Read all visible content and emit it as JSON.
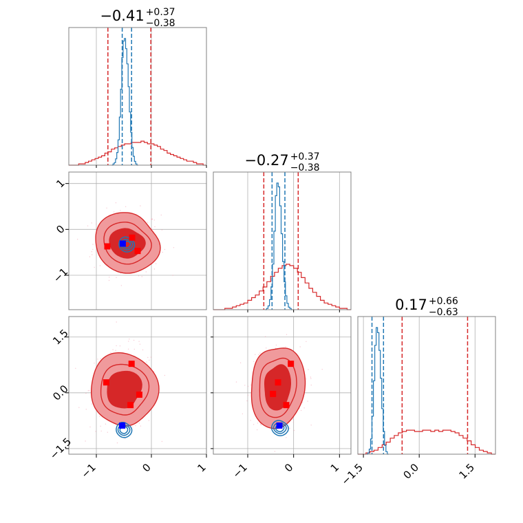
{
  "colors": {
    "prior": "#d62728",
    "posterior": "#1f77b4",
    "fill_outer": "#f09a9c",
    "fill_inner": "#d62728",
    "marker_red": "#ff0000",
    "marker_blue": "#0000ff"
  },
  "chart_data": {
    "type": "corner",
    "grid": true,
    "parameters": [
      {
        "range": [
          -1.5,
          1.0
        ],
        "ticks": [
          -1,
          0,
          1
        ],
        "tick_labels": [
          "−1",
          "0",
          "1"
        ]
      },
      {
        "range": [
          -1.75,
          1.25
        ],
        "ticks": [
          -1,
          0,
          1
        ],
        "tick_labels": [
          "−1",
          "0",
          "1"
        ]
      },
      {
        "range": [
          -1.65,
          2.05
        ],
        "ticks": [
          -1.5,
          0.0,
          1.5
        ],
        "tick_labels": [
          "−1.5",
          "0.0",
          "1.5"
        ]
      }
    ],
    "titles": [
      {
        "median": "−0.41",
        "plus": "+0.37",
        "minus": "−0.38"
      },
      {
        "median": "−0.27",
        "plus": "+0.37",
        "minus": "−0.38"
      },
      {
        "median": "0.17",
        "plus": "+0.66",
        "minus": "−0.63"
      }
    ],
    "marginals": [
      {
        "prior_lines": [
          -0.79,
          -0.01
        ],
        "posterior_lines": [
          -0.53,
          -0.36
        ],
        "prior_hist": {
          "edges": [
            -1.5,
            1.0
          ],
          "values": [
            0.0,
            0.0,
            0.0,
            0.01,
            0.01,
            0.02,
            0.03,
            0.04,
            0.05,
            0.06,
            0.07,
            0.09,
            0.1,
            0.12,
            0.13,
            0.14,
            0.15,
            0.16,
            0.16,
            0.17,
            0.17,
            0.17,
            0.18,
            0.17,
            0.16,
            0.16,
            0.15,
            0.14,
            0.12,
            0.11,
            0.09,
            0.08,
            0.07,
            0.06,
            0.05,
            0.04,
            0.03,
            0.03,
            0.02,
            0.01,
            0.01,
            0.0
          ]
        },
        "posterior_hist": {
          "edges": [
            -0.72,
            -0.24
          ],
          "values": [
            0.0,
            0.01,
            0.02,
            0.05,
            0.1,
            0.2,
            0.38,
            0.6,
            0.85,
            0.98,
            1.0,
            0.92,
            0.8,
            0.62,
            0.42,
            0.26,
            0.14,
            0.07,
            0.03,
            0.01,
            0.0
          ]
        }
      },
      {
        "prior_lines": [
          -0.65,
          0.1
        ],
        "posterior_lines": [
          -0.47,
          -0.19
        ],
        "prior_hist": {
          "edges": [
            -1.75,
            1.25
          ],
          "values": [
            0.0,
            0.0,
            0.0,
            0.01,
            0.01,
            0.02,
            0.03,
            0.04,
            0.05,
            0.07,
            0.09,
            0.11,
            0.14,
            0.17,
            0.21,
            0.25,
            0.28,
            0.31,
            0.33,
            0.34,
            0.33,
            0.31,
            0.28,
            0.24,
            0.2,
            0.16,
            0.13,
            0.1,
            0.07,
            0.05,
            0.04,
            0.03,
            0.02,
            0.01,
            0.01,
            0.0
          ]
        },
        "posterior_hist": {
          "edges": [
            -0.62,
            -0.02
          ],
          "values": [
            0.0,
            0.01,
            0.03,
            0.08,
            0.18,
            0.36,
            0.62,
            0.9,
            1.0,
            0.97,
            0.82,
            0.6,
            0.38,
            0.22,
            0.11,
            0.05,
            0.02,
            0.01,
            0.0
          ]
        }
      },
      {
        "prior_lines": [
          -0.46,
          1.3
        ],
        "posterior_lines": [
          -1.27,
          -0.96
        ],
        "prior_hist": {
          "edges": [
            -1.65,
            2.05
          ],
          "values": [
            0.0,
            0.0,
            0.01,
            0.02,
            0.03,
            0.05,
            0.07,
            0.09,
            0.12,
            0.14,
            0.16,
            0.17,
            0.18,
            0.18,
            0.17,
            0.17,
            0.18,
            0.18,
            0.17,
            0.18,
            0.17,
            0.18,
            0.18,
            0.17,
            0.16,
            0.14,
            0.12,
            0.1,
            0.07,
            0.05,
            0.03,
            0.02,
            0.01,
            0.0
          ]
        },
        "posterior_hist": {
          "edges": [
            -1.42,
            -0.82
          ],
          "values": [
            0.0,
            0.01,
            0.04,
            0.12,
            0.3,
            0.58,
            0.86,
            1.0,
            0.96,
            0.82,
            0.6,
            0.36,
            0.18,
            0.07,
            0.02,
            0.0
          ]
        }
      }
    ],
    "joints": [
      {
        "params": [
          0,
          1
        ],
        "prior_center": [
          -0.45,
          -0.3
        ],
        "prior_spread": [
          0.28,
          0.32
        ],
        "posterior_center": [
          -0.45,
          -0.33
        ],
        "posterior_spread": [
          0.07,
          0.08
        ],
        "red_markers": [
          [
            -0.8,
            -0.37
          ],
          [
            -0.25,
            -0.47
          ],
          [
            -0.35,
            -0.18
          ]
        ],
        "blue_marker": [
          -0.52,
          -0.31
        ]
      },
      {
        "params": [
          0,
          2
        ],
        "prior_center": [
          -0.5,
          0.1
        ],
        "prior_spread": [
          0.28,
          0.5
        ],
        "posterior_center": [
          -0.5,
          -1.0
        ],
        "posterior_spread": [
          0.07,
          0.1
        ],
        "red_markers": [
          [
            -0.82,
            0.28
          ],
          [
            -0.36,
            0.78
          ],
          [
            -0.22,
            -0.05
          ],
          [
            -0.38,
            -0.33
          ]
        ],
        "blue_marker": [
          -0.53,
          -0.88
        ]
      },
      {
        "params": [
          1,
          2
        ],
        "prior_center": [
          -0.35,
          0.15
        ],
        "prior_spread": [
          0.28,
          0.55
        ],
        "posterior_center": [
          -0.3,
          -0.95
        ],
        "posterior_spread": [
          0.09,
          0.1
        ],
        "red_markers": [
          [
            -0.06,
            0.78
          ],
          [
            -0.34,
            0.28
          ],
          [
            -0.45,
            -0.03
          ],
          [
            -0.16,
            -0.33
          ]
        ],
        "blue_marker": [
          -0.31,
          -0.88
        ]
      }
    ]
  }
}
